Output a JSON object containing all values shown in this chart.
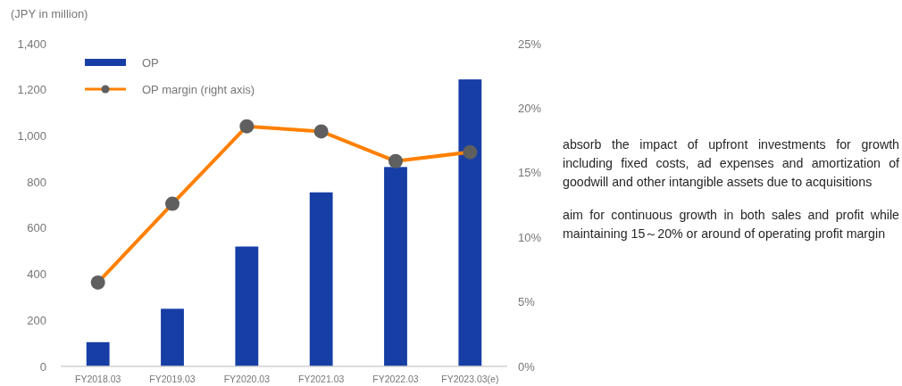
{
  "chart_data": {
    "type": "bar",
    "ylabel": "(JPY in million)",
    "categories": [
      "FY2018.03",
      "FY2019.03",
      "FY2020.03",
      "FY2021.03",
      "FY2022.03",
      "FY2023.03(e)"
    ],
    "series": [
      {
        "name": "OP",
        "color": "#173ea5",
        "values": [
          105,
          250,
          520,
          755,
          865,
          1245
        ]
      },
      {
        "name": "OP margin (right axis)",
        "type": "line",
        "axis": "y2",
        "color": "#ff8000",
        "colors": [
          "#5f5f5f",
          "#5f5f5f",
          "#5f5f5f",
          "#5f5f5f",
          "#5f5f5f",
          "#5f5f5f"
        ],
        "values": [
          6.5,
          12.6,
          18.6,
          18.2,
          15.9,
          16.6
        ]
      }
    ],
    "ylim": [
      0,
      1400
    ],
    "yticks": [
      0,
      {
        "value": 200,
        "label": "200"
      },
      {
        "value": 400,
        "label": "400"
      },
      {
        "value": 600,
        "label": "600"
      },
      {
        "value": 800,
        "label": "800"
      },
      {
        "value": 1000,
        "label": "1,000"
      },
      {
        "value": 1200,
        "label": "1,200"
      },
      {
        "value": 1400,
        "label": "1,400"
      }
    ],
    "y2lim": [
      0,
      25
    ],
    "y2ticks": [
      {
        "value": 0,
        "label": "0%"
      },
      {
        "value": 5,
        "label": "5%"
      },
      {
        "value": 10,
        "label": "10%"
      },
      {
        "value": 15,
        "label": "15%"
      },
      {
        "value": 20,
        "label": "20%"
      },
      {
        "value": 25,
        "label": "25%"
      }
    ],
    "grid": false,
    "legend": "top left",
    "marker": "circle",
    "line_style": "solid",
    "annotations": [
      "absorb the impact of upfront investments for growth including fixed costs, ad expenses and amortization of goodwill and other intangible assets due to acquisitions",
      "aim for continuous growth in both sales and profit while maintaining 15～20% or around of operating profit margin"
    ]
  }
}
